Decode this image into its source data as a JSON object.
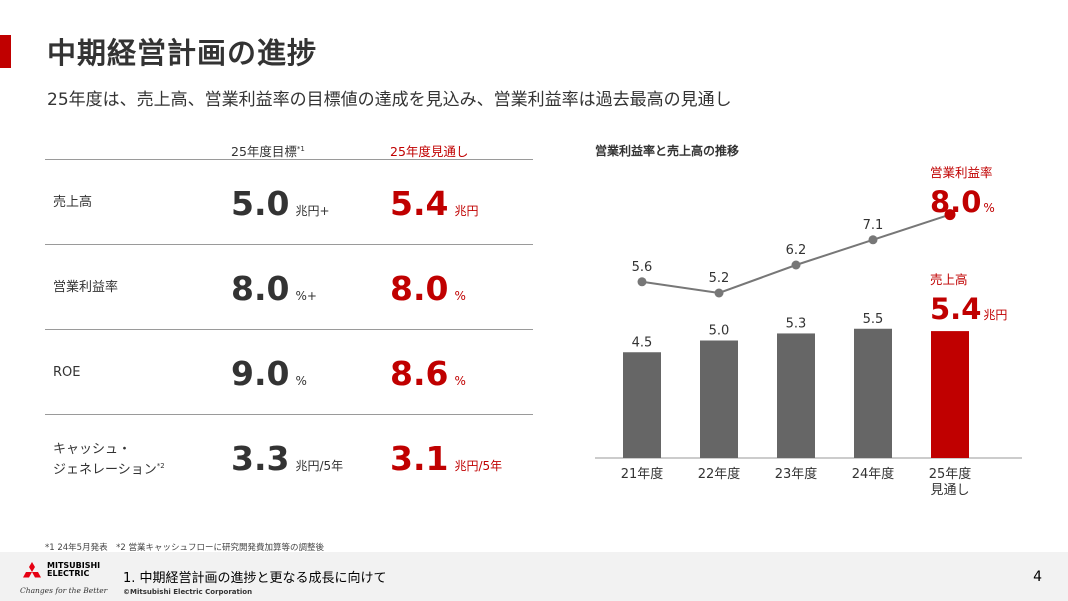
{
  "header": {
    "title": "中期経営計画の進捗",
    "subtitle": "25年度は、売上高、営業利益率の目標値の達成を見込み、営業利益率は過去最高の見通し"
  },
  "table": {
    "col_target": "25年度目標",
    "col_target_note": "*1",
    "col_outlook": "25年度見通し",
    "rows": [
      {
        "label": "売上高",
        "label_line2": "",
        "note": "",
        "target_value": "5.0",
        "target_unit": "兆円+",
        "outlook_value": "5.4",
        "outlook_unit": "兆円"
      },
      {
        "label": "営業利益率",
        "label_line2": "",
        "note": "",
        "target_value": "8.0",
        "target_unit": "%+",
        "outlook_value": "8.0",
        "outlook_unit": "%"
      },
      {
        "label": "ROE",
        "label_line2": "",
        "note": "",
        "target_value": "9.0",
        "target_unit": "%",
        "outlook_value": "8.6",
        "outlook_unit": "%"
      },
      {
        "label": "キャッシュ・",
        "label_line2": "ジェネレーション",
        "note": "*2",
        "target_value": "3.3",
        "target_unit": "兆円/5年",
        "outlook_value": "3.1",
        "outlook_unit": "兆円/5年"
      }
    ]
  },
  "chart_title": "営業利益率と売上高の推移",
  "chart_data": {
    "type": "bar",
    "categories": [
      "21年度",
      "22年度",
      "23年度",
      "24年度",
      "25年度\n見通し"
    ],
    "series": [
      {
        "name": "売上高",
        "type": "bar",
        "values": [
          4.5,
          5.0,
          5.3,
          5.5,
          5.4
        ],
        "unit": "兆円"
      },
      {
        "name": "営業利益率",
        "type": "line",
        "values": [
          5.6,
          5.2,
          6.2,
          7.1,
          8.0
        ],
        "unit": "%"
      }
    ],
    "highlight_index": 4,
    "highlight_labels": {
      "bar_name": "売上高",
      "bar_value": "5.4",
      "bar_unit": "兆円",
      "line_name": "営業利益率",
      "line_value": "8.0",
      "line_unit": "%"
    },
    "colors": {
      "bar": "#666666",
      "highlight": "#c00000",
      "line": "#777777",
      "axis": "#9a9a9a"
    }
  },
  "footnote": "*1 24年5月発表　*2 営業キャッシュフローに研究開発費加算等の調整後",
  "footer": {
    "logo_line1": "MITSUBISHI",
    "logo_line2": "ELECTRIC",
    "tagline": "Changes for the Better",
    "section": "1. 中期経営計画の進捗と更なる成長に向けて",
    "copyright": "©Mitsubishi Electric Corporation",
    "page": "4"
  }
}
